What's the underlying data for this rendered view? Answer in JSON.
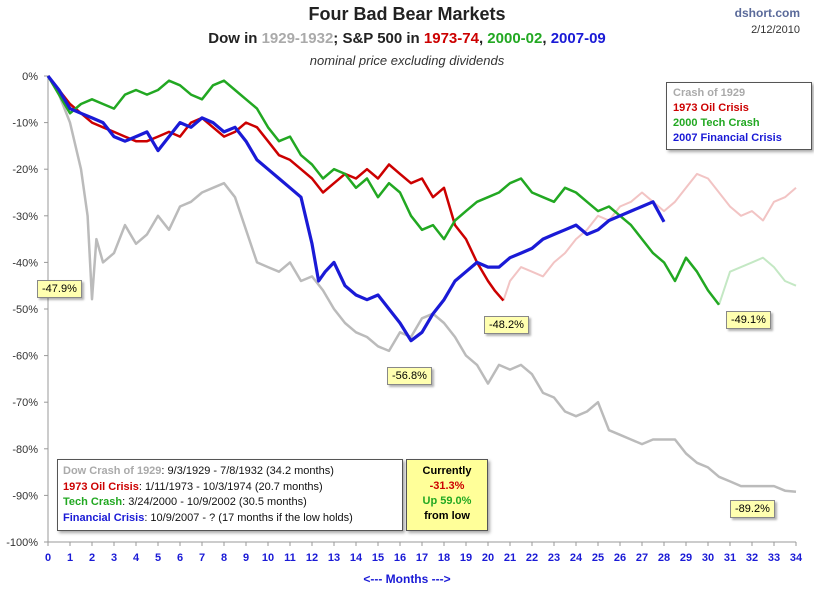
{
  "header": {
    "title": "Four Bad Bear Markets",
    "subtitle_a": "Dow in ",
    "subtitle_b": "1929-1932",
    "subtitle_c": "; S&P 500 in ",
    "subtitle_d": "1973-74",
    "subtitle_e": ", ",
    "subtitle_f": "2000-02",
    "subtitle_g": ", ",
    "subtitle_h": "2007-09",
    "note": "nominal price excluding dividends",
    "brand": "dshort.com",
    "date": "2/12/2010"
  },
  "legend": [
    "Crash of 1929",
    "1973 Oil Crisis",
    "2000 Tech Crash",
    "2007 Financial Crisis"
  ],
  "info": {
    "line1_label": "Dow Crash of 1929",
    "line1_text": ": 9/3/1929  - 7/8/1932  (34.2 months)",
    "line2_label": "1973 Oil Crisis",
    "line2_text": ": 1/11/1973  - 10/3/1974  (20.7 months)",
    "line3_label": "Tech Crash",
    "line3_text": ":  3/24/2000  - 10/9/2002  (30.5 months)",
    "line4_label": "Financial Crisis",
    "line4_text": ": 10/9/2007 - ?  (17 months if the low holds)"
  },
  "current": {
    "label": "Currently",
    "value": "-31.3%",
    "up": "Up 59.0%",
    "from": "from low"
  },
  "months_label": "<---  Months  --->",
  "colors": {
    "crash1929": "#bbbbbb",
    "oil1973": "#cc0000",
    "tech2000": "#22a822",
    "fin2007": "#1a1ad6"
  },
  "chart_data": {
    "type": "line",
    "xlabel": "<---  Months  --->",
    "ylabel": "",
    "xlim": [
      0,
      34
    ],
    "ylim": [
      -100,
      0
    ],
    "x_ticks": [
      "0",
      "1",
      "2",
      "3",
      "4",
      "5",
      "6",
      "7",
      "8",
      "9",
      "10",
      "11",
      "12",
      "13",
      "14",
      "15",
      "16",
      "17",
      "18",
      "19",
      "20",
      "21",
      "22",
      "23",
      "24",
      "25",
      "26",
      "27",
      "28",
      "29",
      "30",
      "31",
      "32",
      "33",
      "34"
    ],
    "y_ticks": [
      "0%",
      "-10%",
      "-20%",
      "-30%",
      "-40%",
      "-50%",
      "-60%",
      "-70%",
      "-80%",
      "-90%",
      "-100%"
    ],
    "grid": false,
    "legend_position": "top-right",
    "series": [
      {
        "name": "Crash of 1929",
        "color": "#bbbbbb",
        "x": [
          0,
          0.5,
          1,
          1.5,
          1.8,
          2.0,
          2.2,
          2.5,
          3,
          3.5,
          4,
          4.5,
          5,
          5.5,
          6,
          6.5,
          7,
          7.5,
          8,
          8.5,
          9,
          9.5,
          10,
          10.5,
          11,
          11.5,
          12,
          12.5,
          13,
          13.5,
          14,
          14.5,
          15,
          15.5,
          16,
          16.5,
          17,
          17.5,
          18,
          18.5,
          19,
          19.5,
          20,
          20.5,
          21,
          21.5,
          22,
          22.5,
          23,
          23.5,
          24,
          24.5,
          25,
          25.5,
          26,
          26.5,
          27,
          27.5,
          28,
          28.5,
          29,
          29.5,
          30,
          30.5,
          31,
          31.5,
          32,
          32.5,
          33,
          33.5,
          34
        ],
        "y": [
          0,
          -4,
          -10,
          -20,
          -30,
          -47.9,
          -35,
          -40,
          -38,
          -32,
          -36,
          -34,
          -30,
          -33,
          -28,
          -27,
          -25,
          -24,
          -23,
          -26,
          -33,
          -40,
          -41,
          -42,
          -40,
          -44,
          -43,
          -46,
          -50,
          -53,
          -55,
          -56,
          -58,
          -59,
          -55,
          -56,
          -52,
          -51,
          -53,
          -56,
          -60,
          -62,
          -66,
          -62,
          -63,
          -62,
          -64,
          -68,
          -69,
          -72,
          -73,
          -72,
          -70,
          -76,
          -77,
          -78,
          -79,
          -78,
          -78,
          -78,
          -81,
          -83,
          -84,
          -86,
          -87,
          -88,
          -88,
          -88,
          -88,
          -89,
          -89.2
        ]
      },
      {
        "name": "1973 Oil Crisis",
        "color": "#cc0000",
        "x": [
          0,
          0.5,
          1,
          1.5,
          2,
          2.5,
          3,
          3.5,
          4,
          4.5,
          5,
          5.5,
          6,
          6.5,
          7,
          7.5,
          8,
          8.5,
          9,
          9.5,
          10,
          10.5,
          11,
          11.5,
          12,
          12.5,
          13,
          13.5,
          14,
          14.5,
          15,
          15.5,
          16,
          16.5,
          17,
          17.5,
          18,
          18.5,
          19,
          19.5,
          20,
          20.3,
          20.7
        ],
        "y": [
          0,
          -3,
          -6,
          -8,
          -10,
          -11,
          -12,
          -13,
          -14,
          -14,
          -13,
          -12,
          -13,
          -10,
          -9,
          -11,
          -13,
          -12,
          -10,
          -11,
          -14,
          -17,
          -18,
          -20,
          -22,
          -25,
          -23,
          -21,
          -22,
          -20,
          -22,
          -19,
          -21,
          -23,
          -22,
          -26,
          -24,
          -32,
          -35,
          -40,
          -44,
          -46,
          -48.2
        ]
      },
      {
        "name": "2000 Tech Crash",
        "color": "#22a822",
        "x": [
          0,
          0.5,
          1,
          1.5,
          2,
          2.5,
          3,
          3.5,
          4,
          4.5,
          5,
          5.5,
          6,
          6.5,
          7,
          7.5,
          8,
          8.5,
          9,
          9.5,
          10,
          10.5,
          11,
          11.5,
          12,
          12.5,
          13,
          13.5,
          14,
          14.5,
          15,
          15.5,
          16,
          16.5,
          17,
          17.5,
          18,
          18.5,
          19,
          19.5,
          20,
          20.5,
          21,
          21.5,
          22,
          22.5,
          23,
          23.5,
          24,
          24.5,
          25,
          25.5,
          26,
          26.5,
          27,
          27.5,
          28,
          28.5,
          29,
          29.5,
          30,
          30.5
        ],
        "y": [
          0,
          -4,
          -8,
          -6,
          -5,
          -6,
          -7,
          -4,
          -3,
          -4,
          -3,
          -1,
          -2,
          -4,
          -5,
          -2,
          -1,
          -3,
          -5,
          -7,
          -11,
          -14,
          -13,
          -17,
          -19,
          -22,
          -20,
          -21,
          -24,
          -22,
          -26,
          -23,
          -25,
          -30,
          -33,
          -32,
          -35,
          -31,
          -29,
          -27,
          -26,
          -25,
          -23,
          -22,
          -25,
          -26,
          -27,
          -24,
          -25,
          -27,
          -29,
          -28,
          -30,
          -32,
          -35,
          -38,
          -40,
          -44,
          -39,
          -42,
          -46,
          -49.1
        ]
      },
      {
        "name": "2007 Financial Crisis",
        "color": "#1a1ad6",
        "x": [
          0,
          0.5,
          1,
          1.5,
          2,
          2.5,
          3,
          3.5,
          4,
          4.5,
          5,
          5.5,
          6,
          6.5,
          7,
          7.5,
          8,
          8.5,
          9,
          9.5,
          10,
          10.5,
          11,
          11.5,
          12,
          12.3,
          12.6,
          13,
          13.5,
          14,
          14.5,
          15,
          15.5,
          16,
          16.5,
          17,
          17.5,
          18,
          18.5,
          19,
          19.5,
          20,
          20.5,
          21,
          21.5,
          22,
          22.5,
          23,
          23.5,
          24,
          24.5,
          25,
          25.5,
          26,
          26.5,
          27,
          27.5,
          28
        ],
        "y": [
          0,
          -3,
          -7,
          -8,
          -9,
          -10,
          -13,
          -14,
          -13,
          -12,
          -16,
          -13,
          -10,
          -11,
          -9,
          -10,
          -12,
          -11,
          -14,
          -18,
          -20,
          -22,
          -24,
          -26,
          -36,
          -44,
          -42,
          -40,
          -45,
          -47,
          -48,
          -47,
          -50,
          -53,
          -56.8,
          -55,
          -51,
          -48,
          -44,
          -42,
          -40,
          -41,
          -41,
          -39,
          -38,
          -37,
          -35,
          -34,
          -33,
          -32,
          -34,
          -33,
          -31,
          -30,
          -29,
          -28,
          -27,
          -31.3
        ]
      }
    ],
    "ghost_series": [
      {
        "name": "1973 Oil Crisis (continued)",
        "color": "#f2c4c4",
        "x": [
          20.7,
          21,
          21.5,
          22,
          22.5,
          23,
          23.5,
          24,
          24.5,
          25,
          25.5,
          26,
          26.5,
          27,
          27.5,
          28,
          28.5,
          29,
          29.5,
          30,
          30.5,
          31,
          31.5,
          32,
          32.5,
          33,
          33.5,
          34
        ],
        "y": [
          -48.2,
          -44,
          -41,
          -42,
          -43,
          -40,
          -38,
          -35,
          -33,
          -30,
          -31,
          -28,
          -27,
          -25,
          -27,
          -29,
          -27,
          -24,
          -21,
          -22,
          -25,
          -28,
          -30,
          -29,
          -31,
          -27,
          -26,
          -24
        ]
      },
      {
        "name": "2000 Tech Crash (continued)",
        "color": "#c4e8c4",
        "x": [
          30.5,
          31,
          31.5,
          32,
          32.5,
          33,
          33.5,
          34
        ],
        "y": [
          -49.1,
          -42,
          -41,
          -40,
          -39,
          -41,
          -44,
          -45
        ]
      }
    ],
    "annotations": [
      {
        "text": "-47.9%",
        "x": 2,
        "y": -47.9
      },
      {
        "text": "-56.8%",
        "x": 16.5,
        "y": -56.8
      },
      {
        "text": "-48.2%",
        "x": 20.7,
        "y": -48.2
      },
      {
        "text": "-49.1%",
        "x": 30.5,
        "y": -49.1
      },
      {
        "text": "-89.2%",
        "x": 34,
        "y": -89.2
      }
    ]
  }
}
